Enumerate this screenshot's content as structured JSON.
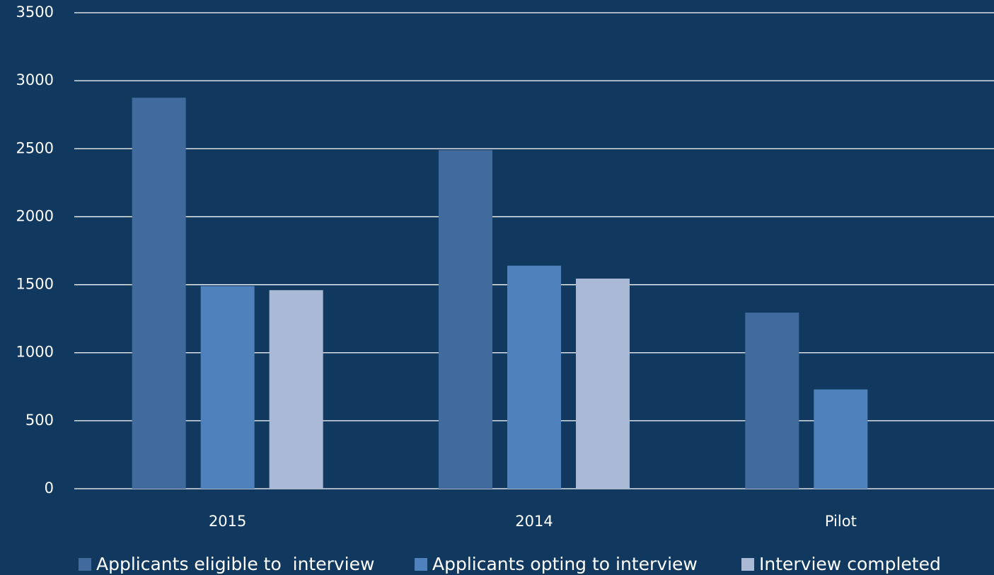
{
  "chart_data": {
    "type": "bar",
    "categories": [
      "2015",
      "2014",
      "Pilot"
    ],
    "series": [
      {
        "name": "Applicants eligible to  interview",
        "color": "#416b9c",
        "values": [
          2875,
          2490,
          1295
        ]
      },
      {
        "name": "Applicants opting to interview",
        "color": "#4f81bd",
        "values": [
          1490,
          1640,
          730
        ]
      },
      {
        "name": "Interview completed",
        "color": "#aab9d6",
        "values": [
          1460,
          1545,
          null
        ]
      }
    ],
    "ylim": [
      0,
      3500
    ],
    "yticks": [
      0,
      500,
      1000,
      1500,
      2000,
      2500,
      3000,
      3500
    ],
    "grid": true
  }
}
